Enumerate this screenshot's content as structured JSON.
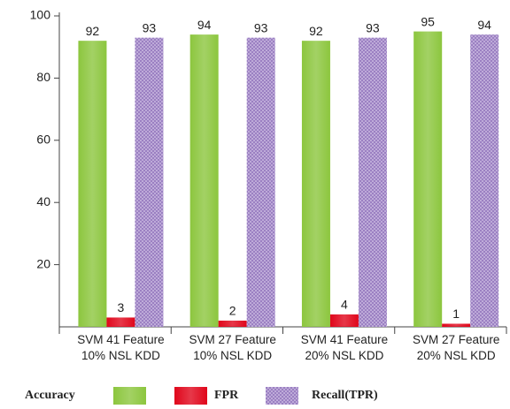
{
  "chart_data": {
    "type": "bar",
    "categories": [
      [
        "SVM 41 Feature",
        "10% NSL KDD"
      ],
      [
        "SVM 27 Feature",
        "10% NSL KDD"
      ],
      [
        "SVM 41 Feature",
        "20%  NSL KDD"
      ],
      [
        "SVM 27 Feature",
        "20% NSL KDD"
      ]
    ],
    "series": [
      {
        "name": "Accuracy",
        "color": "#8cc63e",
        "values": [
          92,
          94,
          92,
          95
        ]
      },
      {
        "name": "FPR",
        "color": "#e0061b",
        "values": [
          3,
          2,
          4,
          1
        ]
      },
      {
        "name": "Recall(TPR)",
        "color": "#9b80c2",
        "values": [
          93,
          93,
          93,
          94
        ]
      }
    ],
    "ylim": [
      0,
      100
    ],
    "yticks": [
      20,
      40,
      60,
      80,
      100
    ],
    "legend": "bottom",
    "data_labels": true
  }
}
